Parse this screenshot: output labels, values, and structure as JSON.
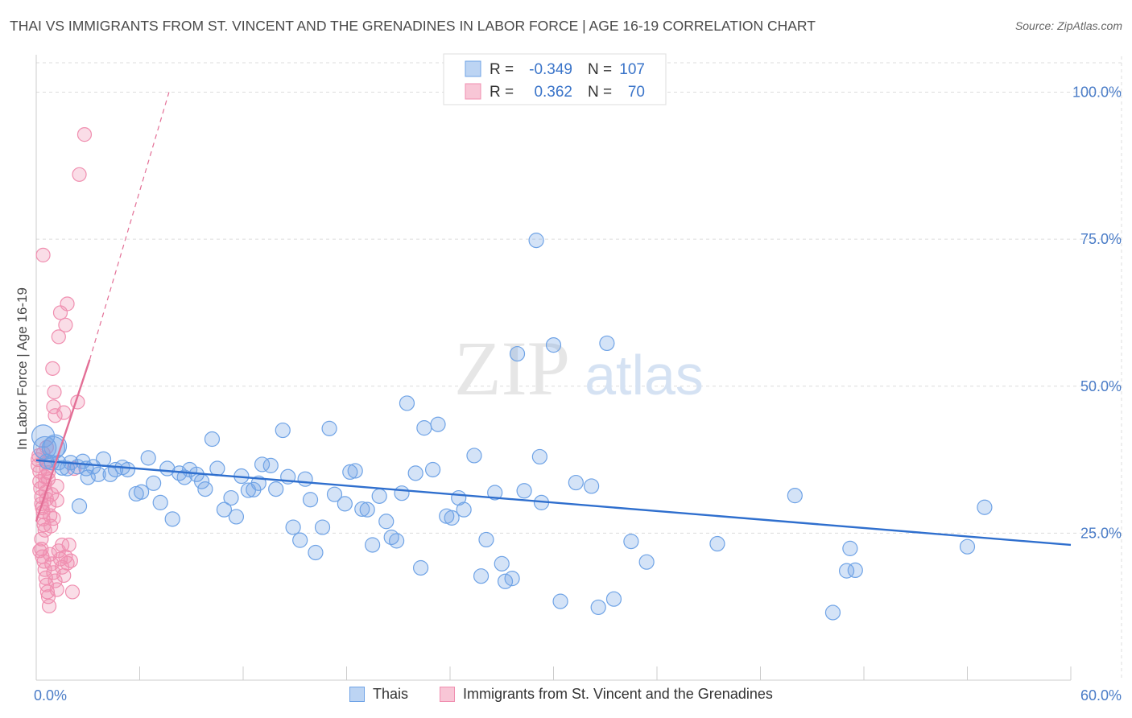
{
  "header": {
    "title": "THAI VS IMMIGRANTS FROM ST. VINCENT AND THE GRENADINES IN LABOR FORCE | AGE 16-19 CORRELATION CHART",
    "source": "Source: ZipAtlas.com"
  },
  "watermark": {
    "zip": "ZIP",
    "atlas": "atlas"
  },
  "colors": {
    "thai": "#6fa3e6",
    "thai_line": "#2f6fce",
    "svg": "#f08fb0",
    "svg_line": "#e36f96",
    "axis_label": "#4a7cc7",
    "grid": "#dcdcdc"
  },
  "stats": {
    "thai": {
      "r_label": "R =",
      "r_value": "-0.349",
      "n_label": "N =",
      "n_value": "107"
    },
    "svg": {
      "r_label": "R =",
      "r_value": "0.362",
      "n_label": "N =",
      "n_value": "70"
    }
  },
  "legend": {
    "thai": "Thais",
    "svg": "Immigrants from St. Vincent and the Grenadines"
  },
  "chart_data": {
    "type": "scatter",
    "title": "THAI VS IMMIGRANTS FROM ST. VINCENT AND THE GRENADINES IN LABOR FORCE | AGE 16-19 CORRELATION CHART",
    "xlabel": "",
    "ylabel": "In Labor Force | Age 16-19",
    "xlim": [
      0,
      60
    ],
    "ylim": [
      0,
      105
    ],
    "x_tick_labels": [
      "0.0%",
      "60.0%"
    ],
    "y_ticks": [
      25,
      50,
      75,
      100
    ],
    "y_tick_labels": [
      "25.0%",
      "50.0%",
      "75.0%",
      "100.0%"
    ],
    "grid": true,
    "legend_position": "bottom",
    "series": [
      {
        "name": "Thais",
        "points": [
          [
            0.5,
            39.5
          ],
          [
            0.6,
            37.2
          ],
          [
            0.9,
            37.0
          ],
          [
            1.0,
            39.5
          ],
          [
            1.3,
            37.0
          ],
          [
            1.5,
            36.1
          ],
          [
            1.8,
            36.0
          ],
          [
            2.0,
            37.0
          ],
          [
            2.4,
            36.3
          ],
          [
            2.5,
            29.6
          ],
          [
            2.7,
            37.2
          ],
          [
            3.0,
            34.5
          ],
          [
            3.3,
            36.3
          ],
          [
            3.6,
            35.0
          ],
          [
            3.9,
            37.6
          ],
          [
            4.3,
            35.0
          ],
          [
            4.6,
            35.8
          ],
          [
            5.0,
            36.2
          ],
          [
            5.3,
            35.8
          ],
          [
            5.8,
            31.7
          ],
          [
            6.1,
            32.0
          ],
          [
            6.5,
            37.8
          ],
          [
            6.8,
            33.5
          ],
          [
            7.2,
            30.2
          ],
          [
            7.6,
            36.0
          ],
          [
            7.9,
            27.4
          ],
          [
            8.3,
            35.2
          ],
          [
            8.6,
            34.5
          ],
          [
            8.9,
            35.8
          ],
          [
            9.3,
            35.0
          ],
          [
            9.6,
            33.8
          ],
          [
            9.8,
            32.5
          ],
          [
            10.2,
            41.0
          ],
          [
            10.5,
            36.0
          ],
          [
            10.9,
            29.0
          ],
          [
            11.3,
            31.0
          ],
          [
            11.6,
            27.8
          ],
          [
            11.9,
            34.7
          ],
          [
            12.3,
            32.3
          ],
          [
            12.6,
            32.4
          ],
          [
            12.9,
            33.5
          ],
          [
            13.1,
            36.7
          ],
          [
            13.6,
            36.5
          ],
          [
            13.9,
            32.5
          ],
          [
            14.3,
            42.5
          ],
          [
            14.6,
            34.6
          ],
          [
            14.9,
            26.0
          ],
          [
            15.3,
            23.8
          ],
          [
            15.6,
            34.2
          ],
          [
            15.9,
            30.7
          ],
          [
            16.2,
            21.7
          ],
          [
            16.6,
            26.0
          ],
          [
            17.0,
            42.8
          ],
          [
            17.3,
            31.6
          ],
          [
            17.9,
            30.0
          ],
          [
            18.2,
            35.4
          ],
          [
            18.5,
            35.6
          ],
          [
            18.9,
            29.1
          ],
          [
            19.2,
            29.0
          ],
          [
            19.5,
            23.0
          ],
          [
            19.9,
            31.3
          ],
          [
            20.3,
            27.0
          ],
          [
            20.6,
            24.3
          ],
          [
            20.9,
            23.7
          ],
          [
            21.2,
            31.8
          ],
          [
            21.5,
            47.1
          ],
          [
            22.0,
            35.2
          ],
          [
            22.3,
            19.1
          ],
          [
            22.5,
            42.9
          ],
          [
            23.0,
            35.8
          ],
          [
            23.3,
            43.5
          ],
          [
            23.8,
            27.9
          ],
          [
            24.1,
            27.6
          ],
          [
            24.5,
            31.0
          ],
          [
            24.8,
            29.0
          ],
          [
            25.4,
            38.2
          ],
          [
            25.8,
            17.7
          ],
          [
            26.1,
            23.9
          ],
          [
            26.6,
            31.9
          ],
          [
            27.0,
            19.8
          ],
          [
            27.2,
            16.8
          ],
          [
            27.6,
            17.3
          ],
          [
            28.3,
            32.2
          ],
          [
            29.0,
            74.8
          ],
          [
            29.2,
            38.0
          ],
          [
            29.3,
            30.2
          ],
          [
            30.0,
            57.0
          ],
          [
            30.4,
            13.4
          ],
          [
            31.3,
            33.6
          ],
          [
            32.2,
            33.0
          ],
          [
            32.6,
            12.4
          ],
          [
            33.1,
            57.3
          ],
          [
            33.5,
            13.8
          ],
          [
            34.5,
            23.6
          ],
          [
            35.4,
            20.1
          ],
          [
            39.5,
            23.2
          ],
          [
            44.0,
            31.4
          ],
          [
            46.2,
            11.5
          ],
          [
            47.0,
            18.6
          ],
          [
            47.2,
            22.4
          ],
          [
            47.5,
            18.7
          ],
          [
            54.0,
            22.7
          ],
          [
            55.0,
            29.4
          ],
          [
            0.4,
            41.5
          ],
          [
            1.1,
            39.8
          ],
          [
            2.9,
            36.0
          ],
          [
            27.9,
            55.5
          ]
        ]
      },
      {
        "name": "Immigrants from St. Vincent and the Grenadines",
        "points": [
          [
            0.1,
            36.5
          ],
          [
            0.1,
            37.5
          ],
          [
            0.15,
            38.2
          ],
          [
            0.2,
            35.5
          ],
          [
            0.2,
            33.8
          ],
          [
            0.25,
            32.6
          ],
          [
            0.3,
            31.2
          ],
          [
            0.3,
            30.0
          ],
          [
            0.35,
            29.3
          ],
          [
            0.4,
            28.6
          ],
          [
            0.4,
            27.4
          ],
          [
            0.45,
            26.4
          ],
          [
            0.5,
            34.6
          ],
          [
            0.5,
            33.3
          ],
          [
            0.55,
            32.0
          ],
          [
            0.6,
            30.8
          ],
          [
            0.6,
            36.0
          ],
          [
            0.65,
            37.0
          ],
          [
            0.7,
            35.3
          ],
          [
            0.75,
            29.8
          ],
          [
            0.8,
            28.0
          ],
          [
            0.85,
            26.2
          ],
          [
            0.3,
            22.3
          ],
          [
            0.35,
            21.0
          ],
          [
            0.45,
            20.2
          ],
          [
            0.5,
            18.8
          ],
          [
            0.55,
            17.4
          ],
          [
            0.6,
            16.2
          ],
          [
            0.65,
            15.0
          ],
          [
            0.7,
            14.2
          ],
          [
            0.75,
            12.6
          ],
          [
            0.8,
            21.4
          ],
          [
            0.9,
            19.8
          ],
          [
            1.0,
            18.3
          ],
          [
            1.1,
            16.9
          ],
          [
            1.2,
            15.4
          ],
          [
            1.3,
            22.0
          ],
          [
            1.4,
            20.6
          ],
          [
            1.5,
            19.2
          ],
          [
            1.6,
            17.8
          ],
          [
            1.7,
            21.0
          ],
          [
            1.8,
            19.9
          ],
          [
            1.9,
            23.0
          ],
          [
            2.0,
            20.3
          ],
          [
            2.1,
            15.0
          ],
          [
            0.95,
            53.0
          ],
          [
            1.05,
            49.0
          ],
          [
            1.1,
            45.0
          ],
          [
            1.3,
            58.4
          ],
          [
            1.4,
            62.5
          ],
          [
            1.7,
            60.4
          ],
          [
            1.8,
            64.0
          ],
          [
            1.6,
            45.5
          ],
          [
            2.4,
            47.3
          ],
          [
            0.4,
            72.3
          ],
          [
            2.5,
            86.0
          ],
          [
            2.8,
            92.8
          ],
          [
            1.0,
            46.5
          ],
          [
            0.6,
            39.6
          ],
          [
            0.7,
            34.2
          ],
          [
            1.2,
            33.0
          ],
          [
            0.3,
            24.0
          ],
          [
            0.4,
            38.6
          ],
          [
            0.5,
            25.5
          ],
          [
            1.0,
            27.5
          ],
          [
            1.2,
            30.6
          ],
          [
            0.9,
            31.6
          ],
          [
            1.5,
            23.0
          ],
          [
            2.2,
            36.0
          ],
          [
            0.2,
            22.0
          ]
        ]
      }
    ],
    "trend_lines": [
      {
        "series": "Thais",
        "from": [
          0,
          37.4
        ],
        "to": [
          60,
          23.0
        ]
      },
      {
        "series": "Immigrants from St. Vincent and the Grenadines",
        "from": [
          0,
          27.0
        ],
        "to": [
          3.1,
          54.5
        ],
        "dashed_to": [
          7.7,
          100
        ]
      }
    ]
  }
}
